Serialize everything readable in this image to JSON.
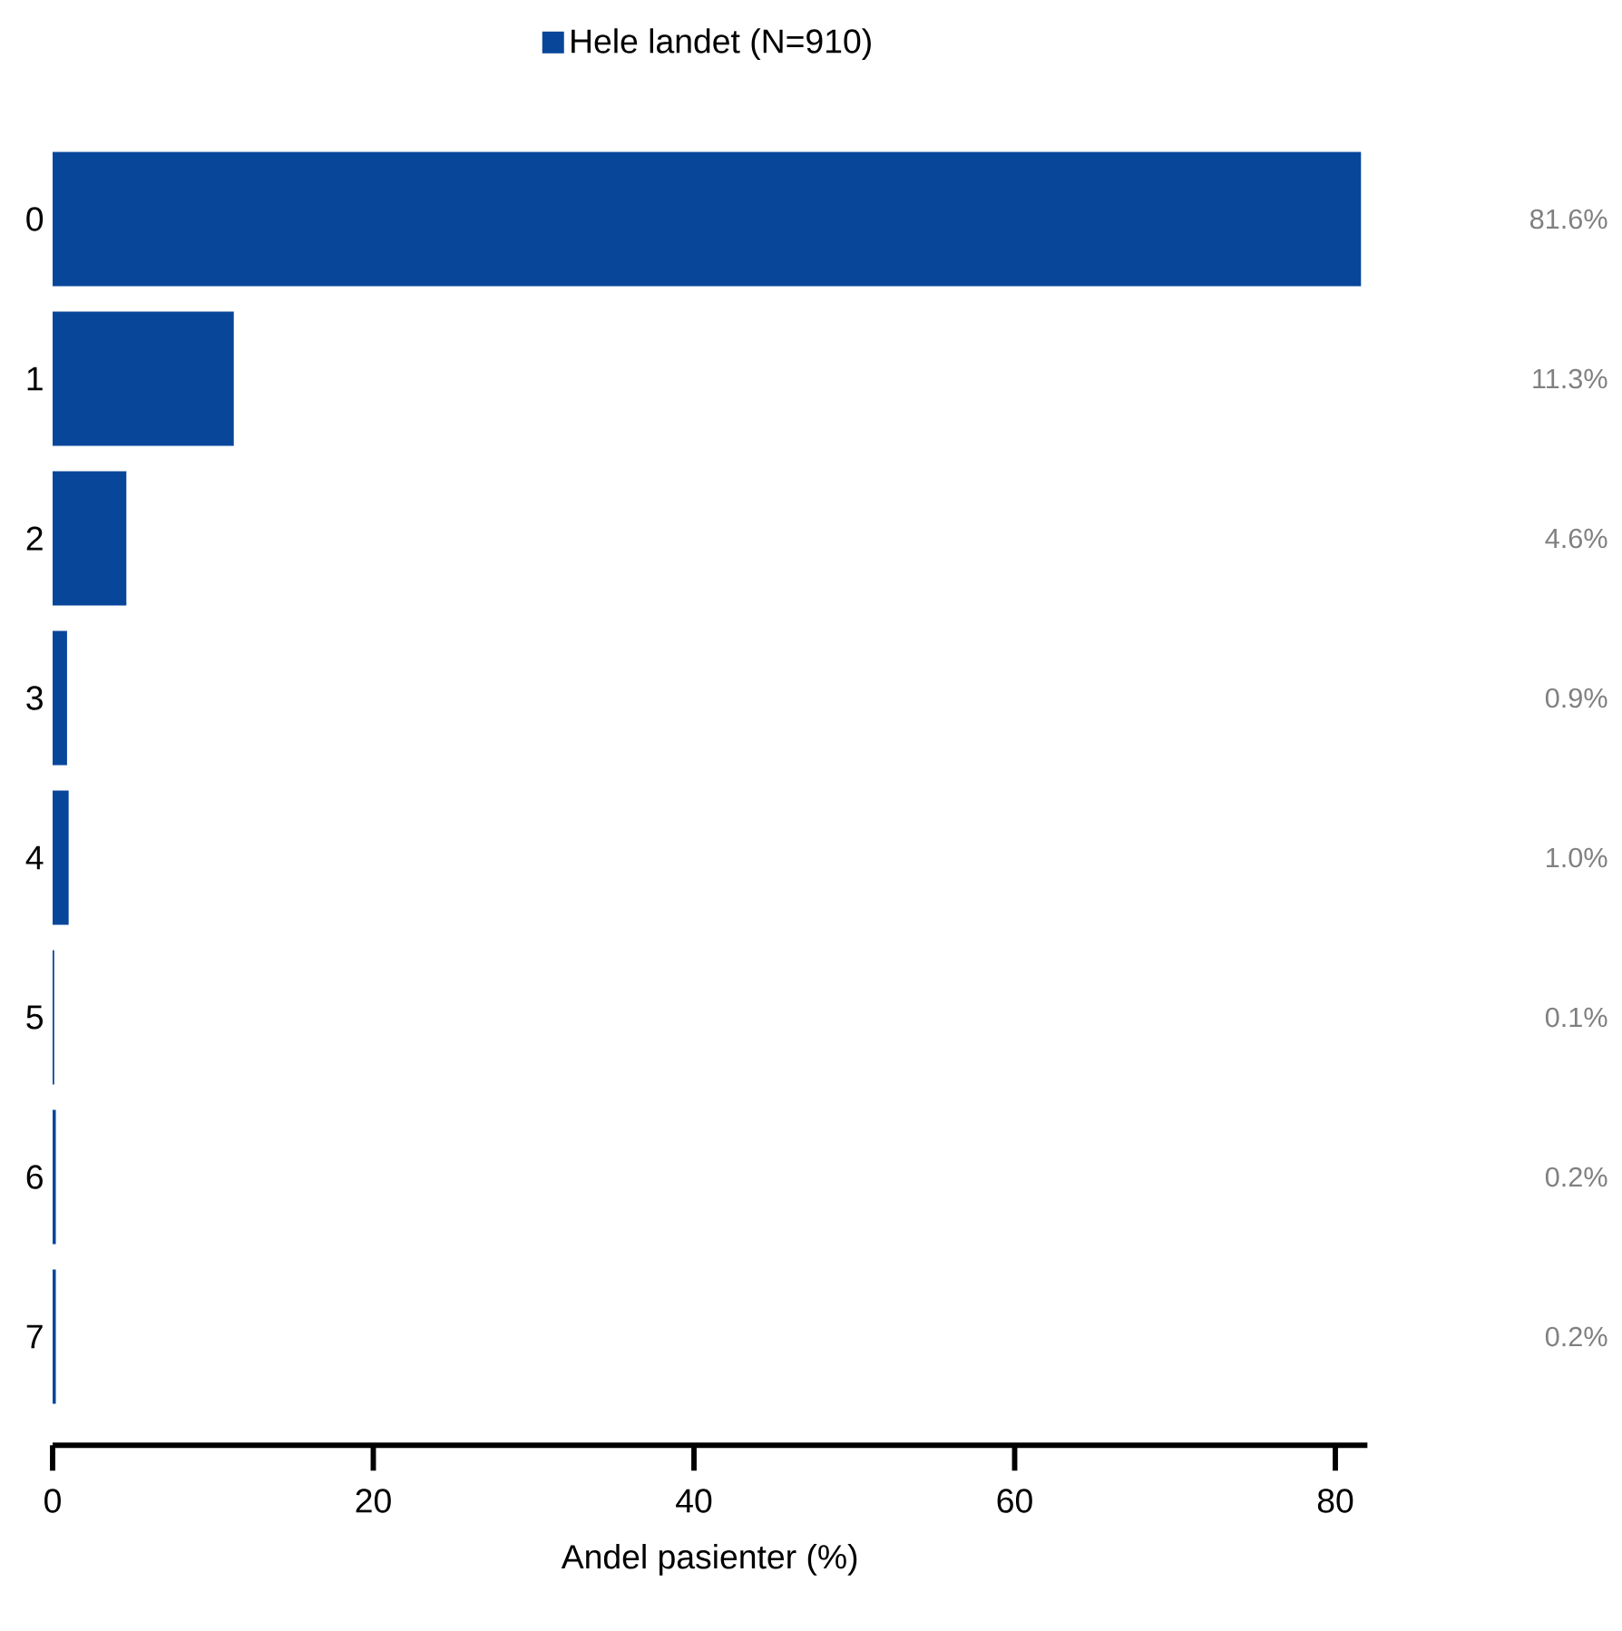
{
  "chart_data": {
    "type": "bar",
    "orientation": "horizontal",
    "xlabel": "Andel pasienter (%)",
    "categories": [
      "0",
      "1",
      "2",
      "3",
      "4",
      "5",
      "6",
      "7"
    ],
    "series": [
      {
        "name": "Hele landet (N=910)",
        "color": "#08469a",
        "values": [
          81.6,
          11.3,
          4.6,
          0.9,
          1.0,
          0.1,
          0.2,
          0.2
        ],
        "value_labels": [
          "81.6%",
          "11.3%",
          "4.6%",
          "0.9%",
          "1.0%",
          "0.1%",
          "0.2%",
          "0.2%"
        ]
      }
    ],
    "xlim": [
      0,
      82
    ],
    "xticks": [
      0,
      20,
      40,
      60,
      80
    ],
    "legend": "top"
  }
}
